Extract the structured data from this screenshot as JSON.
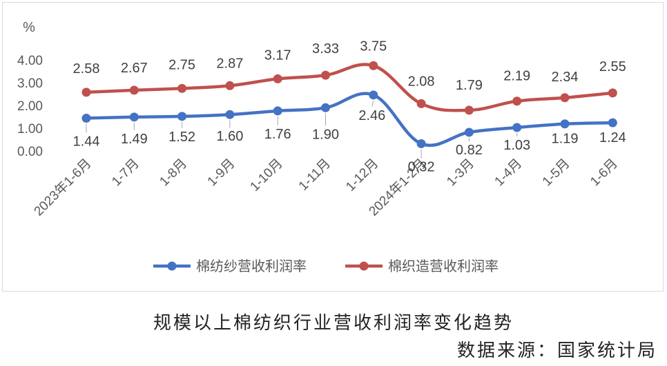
{
  "colors": {
    "series_blue": "#4472C4",
    "series_red": "#C0504D",
    "axis_text": "#595959",
    "grid": "#d9d9d9",
    "leader": "#a6a6a6"
  },
  "caption": {
    "title": "规模以上棉纺织行业营收利润率变化趋势",
    "source_label": "数据来源：",
    "source_value": "国家统计局"
  },
  "chart_data": {
    "type": "line",
    "title": "",
    "ylabel": "%",
    "xlabel": "",
    "ylim": [
      0,
      4
    ],
    "y_ticks": [
      "0.00",
      "1.00",
      "2.00",
      "3.00",
      "4.00"
    ],
    "grid": false,
    "legend_position": "bottom",
    "categories": [
      "2023年1-6月",
      "1-7月",
      "1-8月",
      "1-9月",
      "1-10月",
      "1-11月",
      "1-12月",
      "2024年1-2月",
      "1-3月",
      "1-4月",
      "1-5月",
      "1-6月"
    ],
    "series": [
      {
        "name": "棉纺纱营收利润率",
        "color": "#4472C4",
        "values": [
          1.44,
          1.49,
          1.52,
          1.6,
          1.76,
          1.9,
          2.46,
          0.32,
          0.82,
          1.03,
          1.19,
          1.24
        ],
        "labels": [
          "1.44",
          "1.49",
          "1.52",
          "1.60",
          "1.76",
          "1.90",
          "2.46",
          "0.32",
          "0.82",
          "1.03",
          "1.19",
          "1.24"
        ]
      },
      {
        "name": "棉织造营收利润率",
        "color": "#C0504D",
        "values": [
          2.58,
          2.67,
          2.75,
          2.87,
          3.17,
          3.33,
          3.75,
          2.08,
          1.79,
          2.19,
          2.34,
          2.55
        ],
        "labels": [
          "2.58",
          "2.67",
          "2.75",
          "2.87",
          "3.17",
          "3.33",
          "3.75",
          "2.08",
          "1.79",
          "2.19",
          "2.34",
          "2.55"
        ]
      }
    ]
  }
}
